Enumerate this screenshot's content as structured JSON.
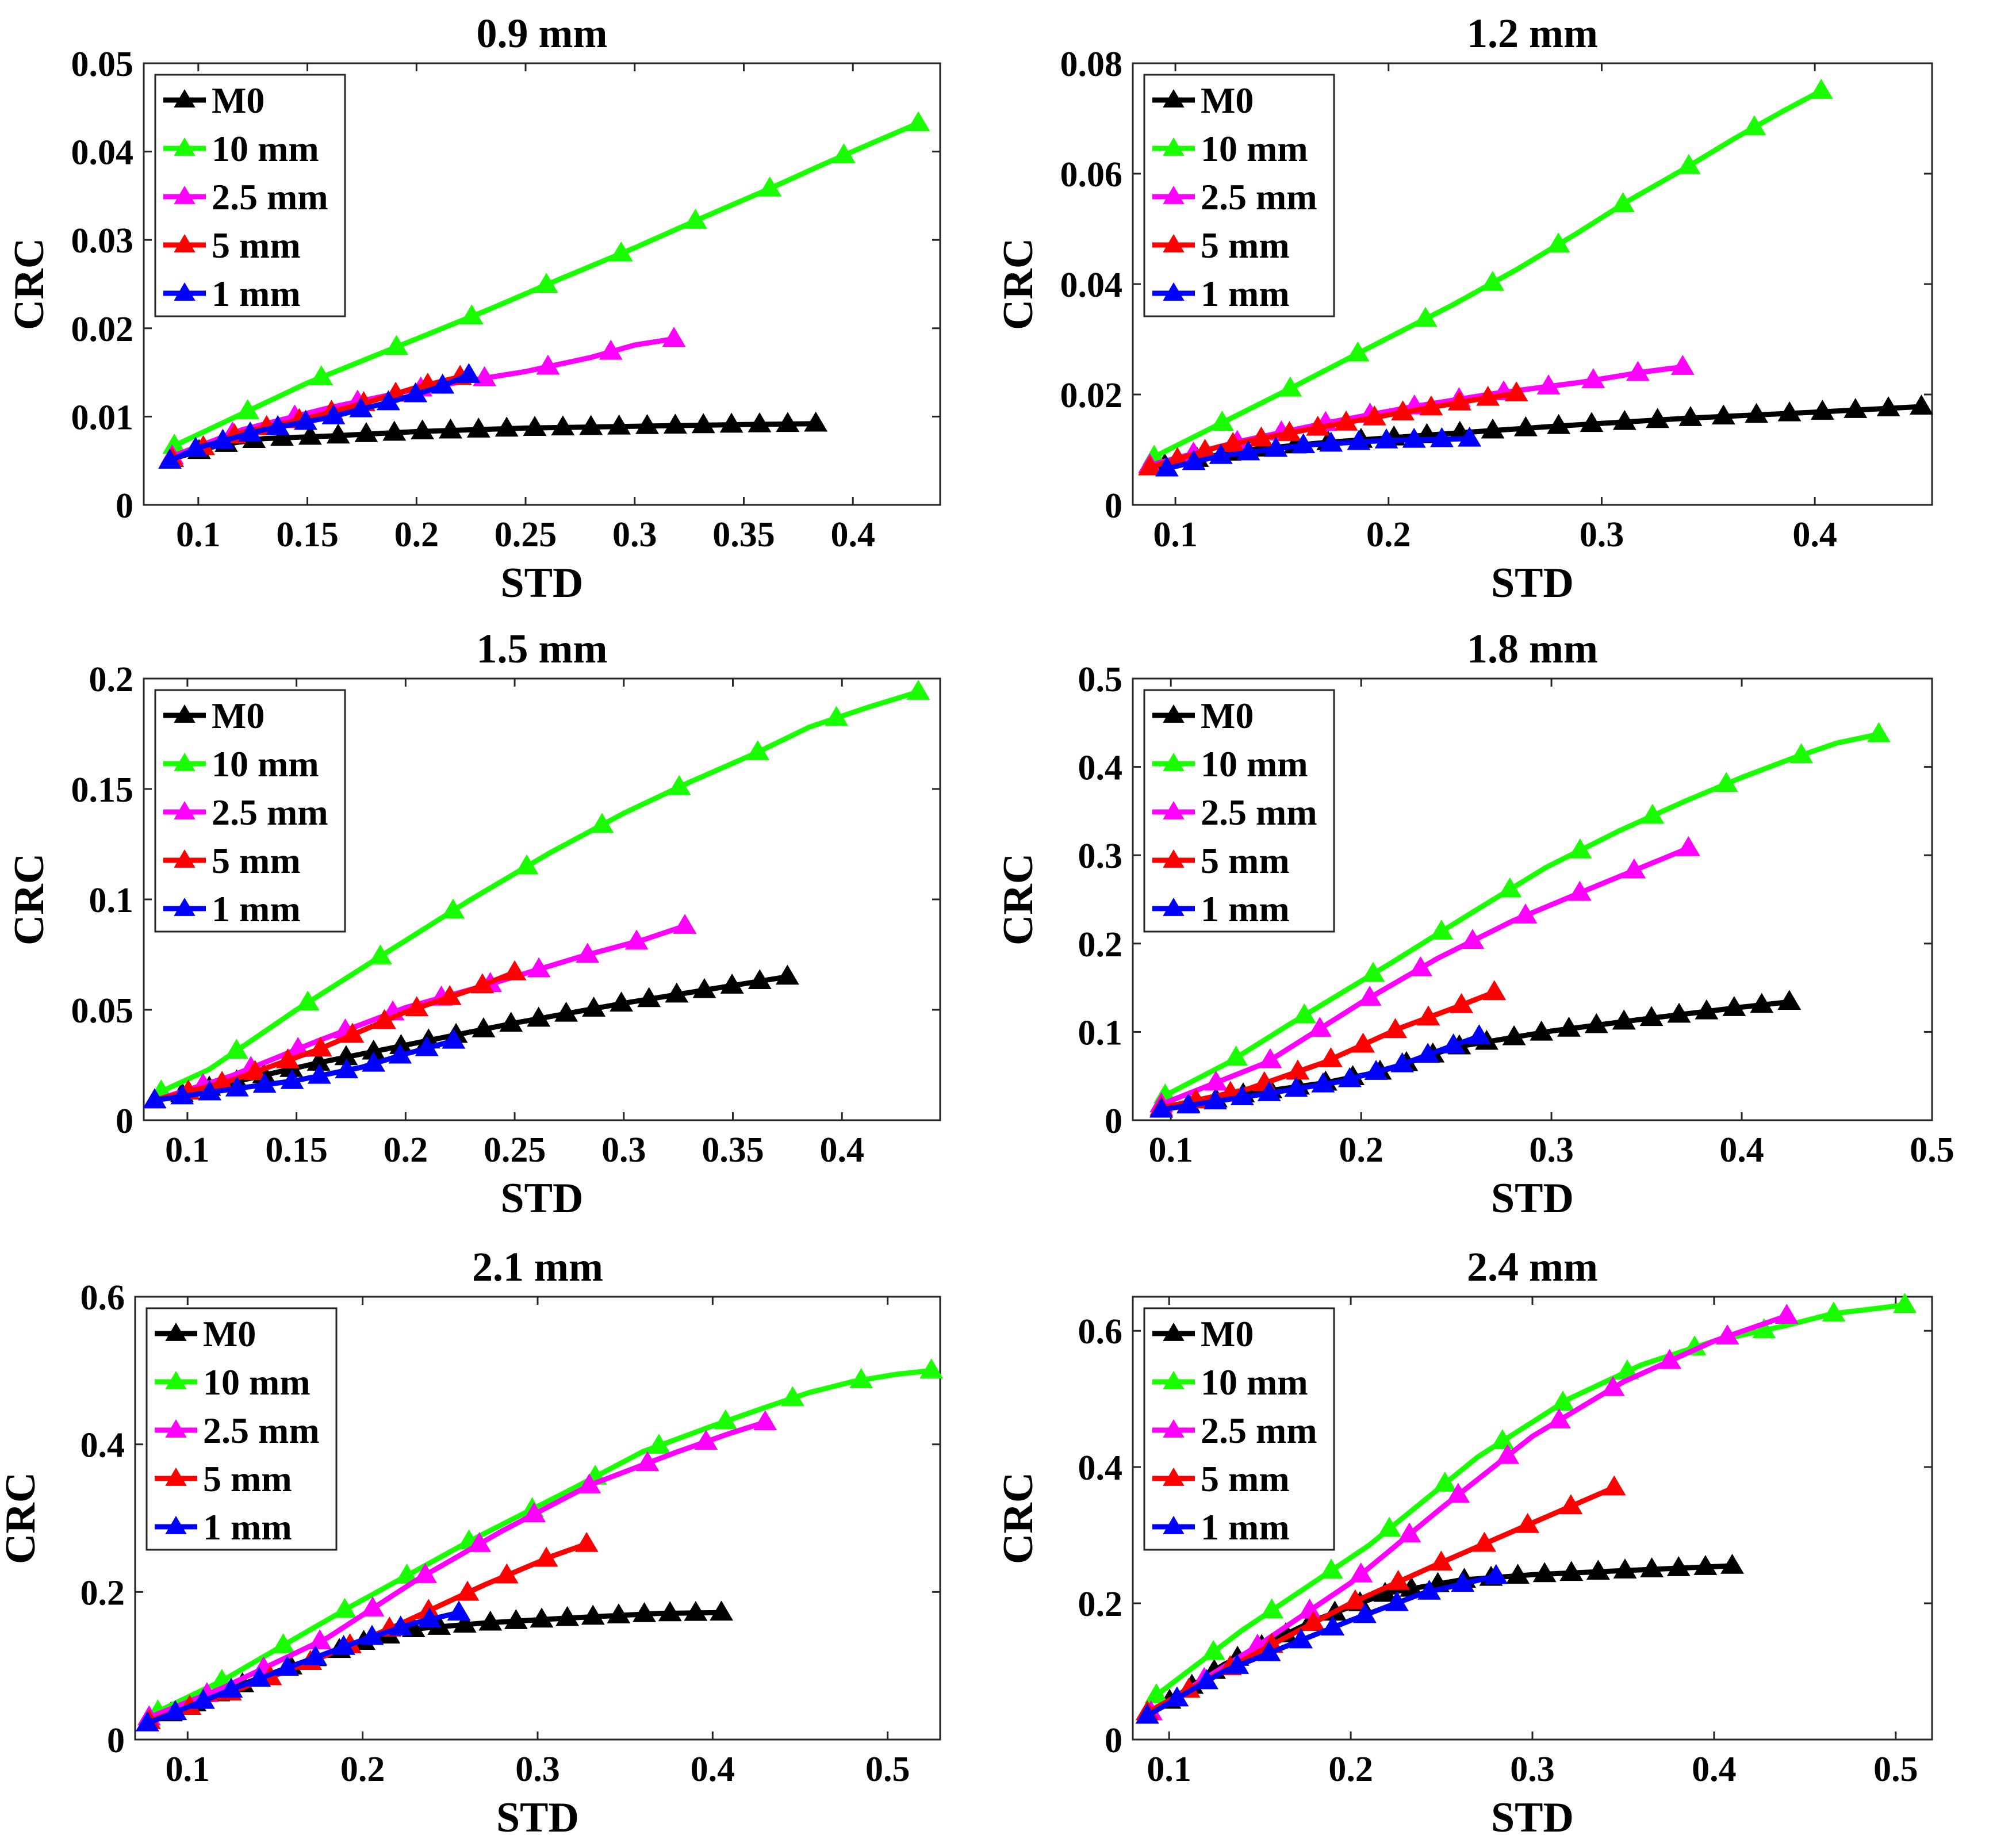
{
  "colors": {
    "M0": "#000000",
    "10 mm": "#19ff00",
    "2.5 mm": "#ff00ff",
    "5 mm": "#ff0000",
    "1 mm": "#0000ff"
  },
  "chart_data": [
    {
      "type": "line",
      "title": "0.9 mm",
      "xlabel": "STD",
      "ylabel": "CRC",
      "xlim": [
        0.075,
        0.44
      ],
      "ylim": [
        0,
        0.05
      ],
      "xticks": [
        0.1,
        0.15,
        0.2,
        0.25,
        0.3,
        0.35,
        0.4
      ],
      "xtick_labels": [
        "0.1",
        "0.15",
        "0.2",
        "0.25",
        "0.3",
        "0.35",
        "0.4"
      ],
      "yticks": [
        0,
        0.01,
        0.02,
        0.03,
        0.04,
        0.05
      ],
      "ytick_labels": [
        "0",
        "0.01",
        "0.02",
        "0.03",
        "0.04",
        "0.05"
      ],
      "legend": [
        "M0",
        "10 mm",
        "2.5 mm",
        "5 mm",
        "1 mm"
      ],
      "legend_location": "top-left",
      "series": [
        {
          "name": "M0",
          "x": [
            0.088,
            0.11,
            0.13,
            0.16,
            0.2,
            0.25,
            0.3,
            0.35,
            0.383
          ],
          "y": [
            0.0052,
            0.0068,
            0.0075,
            0.0078,
            0.0083,
            0.0087,
            0.0089,
            0.0091,
            0.0092
          ],
          "markers": 24
        },
        {
          "name": "10 mm",
          "x": [
            0.089,
            0.15,
            0.193,
            0.232,
            0.266,
            0.3,
            0.33,
            0.36,
            0.385,
            0.41,
            0.43
          ],
          "y": [
            0.0067,
            0.0138,
            0.0181,
            0.022,
            0.0256,
            0.0291,
            0.0324,
            0.0356,
            0.0384,
            0.0411,
            0.0432
          ],
          "markers": 11
        },
        {
          "name": "2.5 mm",
          "x": [
            0.088,
            0.12,
            0.16,
            0.2,
            0.25,
            0.28,
            0.3,
            0.318
          ],
          "y": [
            0.0055,
            0.0085,
            0.011,
            0.0131,
            0.0151,
            0.0167,
            0.0181,
            0.0188
          ],
          "markers": 9
        },
        {
          "name": "5 mm",
          "x": [
            0.088,
            0.12,
            0.15,
            0.18,
            0.2,
            0.22
          ],
          "y": [
            0.0052,
            0.0082,
            0.0098,
            0.0118,
            0.0133,
            0.0145
          ],
          "markers": 10
        },
        {
          "name": "1 mm",
          "x": [
            0.087,
            0.1,
            0.13,
            0.16,
            0.19,
            0.21,
            0.224
          ],
          "y": [
            0.005,
            0.0065,
            0.0085,
            0.0099,
            0.0118,
            0.0133,
            0.0147
          ],
          "markers": 12
        }
      ]
    },
    {
      "type": "line",
      "title": "1.2 mm",
      "xlabel": "STD",
      "ylabel": "CRC",
      "xlim": [
        0.08,
        0.455
      ],
      "ylim": [
        0,
        0.08
      ],
      "xticks": [
        0.1,
        0.2,
        0.3,
        0.4
      ],
      "xtick_labels": [
        "0.1",
        "0.2",
        "0.3",
        "0.4"
      ],
      "yticks": [
        0,
        0.02,
        0.04,
        0.06,
        0.08
      ],
      "ytick_labels": [
        "0",
        "0.02",
        "0.04",
        "0.06",
        "0.08"
      ],
      "legend": [
        "M0",
        "10 mm",
        "2.5 mm",
        "5 mm",
        "1 mm"
      ],
      "legend_location": "top-left",
      "series": [
        {
          "name": "M0",
          "x": [
            0.095,
            0.13,
            0.17,
            0.22,
            0.28,
            0.34,
            0.4,
            0.45
          ],
          "y": [
            0.0072,
            0.0098,
            0.0113,
            0.0127,
            0.0143,
            0.0157,
            0.0168,
            0.0178
          ],
          "markers": 24
        },
        {
          "name": "10 mm",
          "x": [
            0.09,
            0.153,
            0.194,
            0.23,
            0.26,
            0.288,
            0.313,
            0.338,
            0.362,
            0.385,
            0.403
          ],
          "y": [
            0.0087,
            0.0209,
            0.0291,
            0.0362,
            0.0426,
            0.0491,
            0.0552,
            0.0607,
            0.0663,
            0.0713,
            0.075
          ],
          "markers": 11
        },
        {
          "name": "2.5 mm",
          "x": [
            0.088,
            0.13,
            0.17,
            0.21,
            0.25,
            0.29,
            0.32,
            0.338
          ],
          "y": [
            0.0072,
            0.0115,
            0.0148,
            0.0177,
            0.0202,
            0.0222,
            0.0241,
            0.025
          ],
          "markers": 13
        },
        {
          "name": "5 mm",
          "x": [
            0.088,
            0.12,
            0.16,
            0.2,
            0.24,
            0.26
          ],
          "y": [
            0.0068,
            0.0105,
            0.0135,
            0.0163,
            0.019,
            0.0202
          ],
          "markers": 14
        },
        {
          "name": "1 mm",
          "x": [
            0.096,
            0.12,
            0.16,
            0.2,
            0.238
          ],
          "y": [
            0.0066,
            0.0088,
            0.0108,
            0.0117,
            0.012
          ],
          "markers": 12
        }
      ]
    },
    {
      "type": "line",
      "title": "1.5 mm",
      "xlabel": "STD",
      "ylabel": "CRC",
      "xlim": [
        0.08,
        0.445
      ],
      "ylim": [
        0,
        0.2
      ],
      "xticks": [
        0.1,
        0.15,
        0.2,
        0.25,
        0.3,
        0.35,
        0.4
      ],
      "xtick_labels": [
        "0.1",
        "0.15",
        "0.2",
        "0.25",
        "0.3",
        "0.35",
        "0.4"
      ],
      "yticks": [
        0,
        0.05,
        0.1,
        0.15,
        0.2
      ],
      "ytick_labels": [
        "0",
        "0.05",
        "0.1",
        "0.15",
        "0.2"
      ],
      "legend": [
        "M0",
        "10 mm",
        "2.5 mm",
        "5 mm",
        "1 mm"
      ],
      "legend_location": "top-left",
      "series": [
        {
          "name": "M0",
          "x": [
            0.085,
            0.12,
            0.16,
            0.2,
            0.25,
            0.3,
            0.35,
            0.375
          ],
          "y": [
            0.009,
            0.017,
            0.026,
            0.034,
            0.044,
            0.053,
            0.061,
            0.065
          ],
          "markers": 24
        },
        {
          "name": "10 mm",
          "x": [
            0.088,
            0.11,
            0.15,
            0.193,
            0.23,
            0.266,
            0.3,
            0.33,
            0.36,
            0.385,
            0.412,
            0.435
          ],
          "y": [
            0.013,
            0.023,
            0.05,
            0.077,
            0.1,
            0.121,
            0.139,
            0.153,
            0.166,
            0.178,
            0.187,
            0.194
          ],
          "markers": 11
        },
        {
          "name": "2.5 mm",
          "x": [
            0.085,
            0.12,
            0.16,
            0.2,
            0.24,
            0.28,
            0.31,
            0.328
          ],
          "y": [
            0.009,
            0.02,
            0.036,
            0.051,
            0.062,
            0.074,
            0.082,
            0.088
          ],
          "markers": 12
        },
        {
          "name": "5 mm",
          "x": [
            0.085,
            0.12,
            0.16,
            0.2,
            0.23,
            0.25
          ],
          "y": [
            0.009,
            0.018,
            0.032,
            0.049,
            0.059,
            0.067
          ],
          "markers": 12
        },
        {
          "name": "1 mm",
          "x": [
            0.085,
            0.12,
            0.15,
            0.18,
            0.2,
            0.222
          ],
          "y": [
            0.009,
            0.014,
            0.018,
            0.024,
            0.03,
            0.036
          ],
          "markers": 12
        }
      ]
    },
    {
      "type": "line",
      "title": "1.8 mm",
      "xlabel": "STD",
      "ylabel": "CRC",
      "xlim": [
        0.08,
        0.5
      ],
      "ylim": [
        0,
        0.5
      ],
      "xticks": [
        0.1,
        0.2,
        0.3,
        0.4,
        0.5
      ],
      "xtick_labels": [
        "0.1",
        "0.2",
        "0.3",
        "0.4",
        "0.5"
      ],
      "yticks": [
        0,
        0.1,
        0.2,
        0.3,
        0.4,
        0.5
      ],
      "ytick_labels": [
        "0",
        "0.1",
        "0.2",
        "0.3",
        "0.4",
        "0.5"
      ],
      "legend": [
        "M0",
        "10 mm",
        "2.5 mm",
        "5 mm",
        "1 mm"
      ],
      "legend_location": "top-left",
      "series": [
        {
          "name": "M0",
          "x": [
            0.095,
            0.14,
            0.18,
            0.21,
            0.25,
            0.3,
            0.35,
            0.4,
            0.425
          ],
          "y": [
            0.012,
            0.03,
            0.042,
            0.055,
            0.083,
            0.101,
            0.115,
            0.128,
            0.134
          ],
          "markers": 24
        },
        {
          "name": "10 mm",
          "x": [
            0.097,
            0.13,
            0.162,
            0.215,
            0.259,
            0.297,
            0.336,
            0.37,
            0.4,
            0.427,
            0.45,
            0.472
          ],
          "y": [
            0.028,
            0.065,
            0.108,
            0.177,
            0.236,
            0.286,
            0.328,
            0.361,
            0.388,
            0.41,
            0.427,
            0.437
          ],
          "markers": 11
        },
        {
          "name": "2.5 mm",
          "x": [
            0.095,
            0.15,
            0.2,
            0.24,
            0.28,
            0.32,
            0.355,
            0.372
          ],
          "y": [
            0.018,
            0.065,
            0.133,
            0.183,
            0.226,
            0.262,
            0.293,
            0.308
          ],
          "markers": 11
        },
        {
          "name": "5 mm",
          "x": [
            0.095,
            0.14,
            0.18,
            0.22,
            0.25,
            0.27
          ],
          "y": [
            0.014,
            0.035,
            0.065,
            0.104,
            0.128,
            0.145
          ],
          "markers": 11
        },
        {
          "name": "1 mm",
          "x": [
            0.095,
            0.15,
            0.19,
            0.22,
            0.245,
            0.262
          ],
          "y": [
            0.012,
            0.03,
            0.044,
            0.062,
            0.082,
            0.095
          ],
          "markers": 13
        }
      ]
    },
    {
      "type": "line",
      "title": "2.1 mm",
      "xlabel": "STD",
      "ylabel": "CRC",
      "xlim": [
        0.07,
        0.53
      ],
      "ylim": [
        0,
        0.6
      ],
      "xticks": [
        0.1,
        0.2,
        0.3,
        0.4,
        0.5
      ],
      "xtick_labels": [
        "0.1",
        "0.2",
        "0.3",
        "0.4",
        "0.5"
      ],
      "yticks": [
        0,
        0.2,
        0.4,
        0.6
      ],
      "ytick_labels": [
        "0",
        "0.2",
        "0.4",
        "0.6"
      ],
      "legend": [
        "M0",
        "10 mm",
        "2.5 mm",
        "5 mm",
        "1 mm"
      ],
      "legend_location": "top-left",
      "series": [
        {
          "name": "M0",
          "x": [
            0.077,
            0.12,
            0.16,
            0.2,
            0.23,
            0.27,
            0.32,
            0.37,
            0.405
          ],
          "y": [
            0.022,
            0.065,
            0.1,
            0.132,
            0.15,
            0.158,
            0.165,
            0.171,
            0.172
          ],
          "markers": 24
        },
        {
          "name": "10 mm",
          "x": [
            0.083,
            0.12,
            0.16,
            0.193,
            0.262,
            0.32,
            0.36,
            0.4,
            0.43,
            0.455,
            0.48,
            0.505,
            0.525
          ],
          "y": [
            0.038,
            0.08,
            0.135,
            0.18,
            0.27,
            0.34,
            0.39,
            0.425,
            0.45,
            0.47,
            0.485,
            0.495,
            0.5
          ],
          "markers": 13
        },
        {
          "name": "2.5 mm",
          "x": [
            0.078,
            0.12,
            0.18,
            0.23,
            0.28,
            0.33,
            0.38,
            0.41,
            0.43
          ],
          "y": [
            0.03,
            0.07,
            0.138,
            0.215,
            0.283,
            0.345,
            0.39,
            0.415,
            0.43
          ],
          "markers": 12
        },
        {
          "name": "5 mm",
          "x": [
            0.078,
            0.12,
            0.17,
            0.22,
            0.27,
            0.31,
            0.328
          ],
          "y": [
            0.025,
            0.06,
            0.105,
            0.155,
            0.21,
            0.25,
            0.265
          ],
          "markers": 12
        },
        {
          "name": "1 mm",
          "x": [
            0.077,
            0.12,
            0.16,
            0.2,
            0.23,
            0.255
          ],
          "y": [
            0.022,
            0.063,
            0.1,
            0.135,
            0.158,
            0.172
          ],
          "markers": 12
        }
      ]
    },
    {
      "type": "line",
      "title": "2.4 mm",
      "xlabel": "STD",
      "ylabel": "CRC",
      "xlim": [
        0.08,
        0.52
      ],
      "ylim": [
        0,
        0.65
      ],
      "xticks": [
        0.1,
        0.2,
        0.3,
        0.4,
        0.5
      ],
      "xtick_labels": [
        "0.1",
        "0.2",
        "0.3",
        "0.4",
        "0.5"
      ],
      "yticks": [
        0,
        0.2,
        0.4,
        0.6
      ],
      "ytick_labels": [
        "0",
        "0.2",
        "0.4",
        "0.6"
      ],
      "legend": [
        "M0",
        "10 mm",
        "2.5 mm",
        "5 mm",
        "1 mm"
      ],
      "legend_location": "top-left",
      "series": [
        {
          "name": "M0",
          "x": [
            0.088,
            0.13,
            0.18,
            0.22,
            0.26,
            0.3,
            0.35,
            0.41
          ],
          "y": [
            0.035,
            0.11,
            0.175,
            0.215,
            0.234,
            0.242,
            0.248,
            0.255
          ],
          "markers": 24
        },
        {
          "name": "10 mm",
          "x": [
            0.093,
            0.14,
            0.21,
            0.27,
            0.32,
            0.36,
            0.4,
            0.44,
            0.465,
            0.49,
            0.505
          ],
          "y": [
            0.065,
            0.16,
            0.285,
            0.415,
            0.5,
            0.55,
            0.585,
            0.608,
            0.625,
            0.633,
            0.638
          ],
          "markers": 13
        },
        {
          "name": "2.5 mm",
          "x": [
            0.09,
            0.15,
            0.2,
            0.25,
            0.3,
            0.35,
            0.4,
            0.44
          ],
          "y": [
            0.04,
            0.14,
            0.23,
            0.34,
            0.445,
            0.525,
            0.585,
            0.622
          ],
          "markers": 13
        },
        {
          "name": "5 mm",
          "x": [
            0.088,
            0.15,
            0.2,
            0.25,
            0.3,
            0.345
          ],
          "y": [
            0.04,
            0.13,
            0.2,
            0.26,
            0.318,
            0.37
          ],
          "markers": 12
        },
        {
          "name": "1 mm",
          "x": [
            0.088,
            0.13,
            0.2,
            0.24,
            0.28
          ],
          "y": [
            0.035,
            0.1,
            0.175,
            0.215,
            0.24
          ],
          "markers": 12
        }
      ]
    }
  ]
}
